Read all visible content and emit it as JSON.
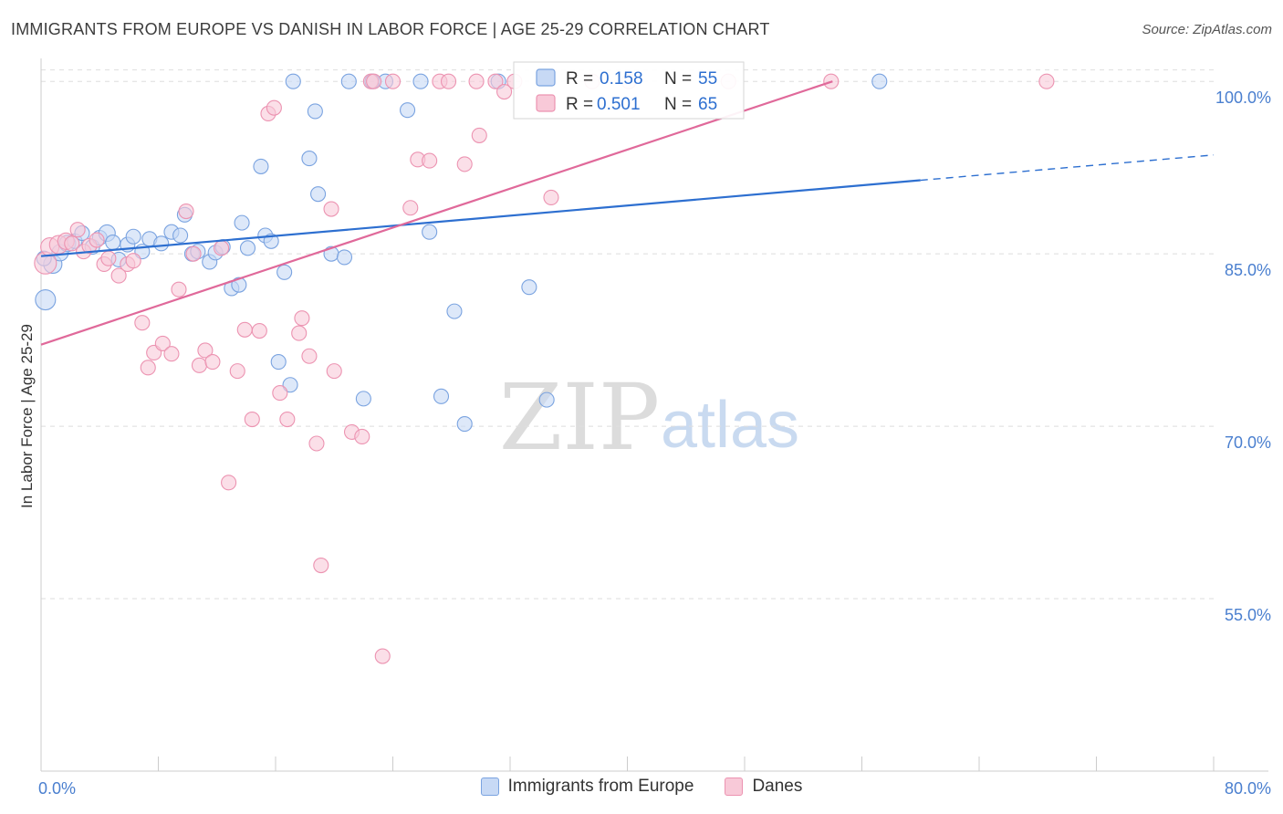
{
  "title": "IMMIGRANTS FROM EUROPE VS DANISH IN LABOR FORCE | AGE 25-29 CORRELATION CHART",
  "source": "Source: ZipAtlas.com",
  "watermark": {
    "zip": "ZIP",
    "atlas": "atlas"
  },
  "colors": {
    "blue_fill": "#c7d9f5",
    "blue_stroke": "#7aa3e0",
    "blue_line": "#2d6fd0",
    "pink_fill": "#f8c9d8",
    "pink_stroke": "#ec93b1",
    "pink_line": "#e0699a",
    "grid": "#dedede",
    "tick_label": "#4a7fcf",
    "axis": "#cccccc"
  },
  "chart_data": {
    "type": "scatter",
    "title": "IMMIGRANTS FROM EUROPE VS DANISH IN LABOR FORCE | AGE 25-29 CORRELATION CHART",
    "xlabel": "",
    "ylabel": "In Labor Force | Age 25-29",
    "xlim": [
      0,
      80
    ],
    "ylim": [
      40,
      102
    ],
    "x_tick_labels": [
      "0.0%",
      "80.0%"
    ],
    "y_ticks": [
      55,
      70,
      85,
      100
    ],
    "y_tick_labels": [
      "55.0%",
      "70.0%",
      "85.0%",
      "100.0%"
    ],
    "legend": [
      {
        "series": "Immigrants from Europe",
        "r_label": "R =",
        "r_value": "0.158",
        "n_label": "N =",
        "n_value": "55"
      },
      {
        "series": "Danes",
        "r_label": "R =",
        "r_value": "0.501",
        "n_label": "N =",
        "n_value": "65"
      }
    ],
    "series": [
      {
        "name": "Immigrants from Europe",
        "color_key": "blue",
        "trend": {
          "x0": 0,
          "y0": 84.8,
          "x1": 60,
          "y1": 91.4,
          "dash_to_x": 80,
          "dash_to_y": 93.6
        },
        "points": [
          [
            0.3,
            81.0,
            11
          ],
          [
            0.8,
            84.1,
            10
          ],
          [
            1.3,
            85.1,
            9
          ],
          [
            1.8,
            85.9,
            9
          ],
          [
            2.3,
            86.1,
            8
          ],
          [
            2.8,
            86.8,
            8
          ],
          [
            3.5,
            85.6,
            8
          ],
          [
            4.0,
            86.4,
            8
          ],
          [
            4.5,
            86.8,
            9
          ],
          [
            4.9,
            86.0,
            8
          ],
          [
            5.3,
            84.5,
            8
          ],
          [
            5.9,
            85.8,
            8
          ],
          [
            6.3,
            86.5,
            8
          ],
          [
            6.9,
            85.2,
            8
          ],
          [
            7.4,
            86.3,
            8
          ],
          [
            8.2,
            85.9,
            8
          ],
          [
            8.9,
            86.9,
            8
          ],
          [
            9.5,
            86.6,
            8
          ],
          [
            9.8,
            88.4,
            8
          ],
          [
            10.3,
            85.0,
            8
          ],
          [
            10.7,
            85.2,
            8
          ],
          [
            11.5,
            84.3,
            8
          ],
          [
            11.9,
            85.1,
            8
          ],
          [
            12.4,
            85.6,
            8
          ],
          [
            13.0,
            82.0,
            8
          ],
          [
            13.5,
            82.3,
            8
          ],
          [
            13.7,
            87.7,
            8
          ],
          [
            14.1,
            85.5,
            8
          ],
          [
            15.3,
            86.6,
            8
          ],
          [
            15.7,
            86.1,
            8
          ],
          [
            15.0,
            92.6,
            8
          ],
          [
            16.6,
            83.4,
            8
          ],
          [
            17.0,
            73.6,
            8
          ],
          [
            16.2,
            75.6,
            8
          ],
          [
            17.2,
            100.0,
            8
          ],
          [
            18.7,
            97.4,
            8
          ],
          [
            18.3,
            93.3,
            8
          ],
          [
            18.9,
            90.2,
            8
          ],
          [
            19.8,
            85.0,
            8
          ],
          [
            20.7,
            84.7,
            8
          ],
          [
            21.0,
            100.0,
            8
          ],
          [
            22.0,
            72.4,
            8
          ],
          [
            22.6,
            100.0,
            8
          ],
          [
            23.5,
            100.0,
            8
          ],
          [
            25.0,
            97.5,
            8
          ],
          [
            25.9,
            100.0,
            8
          ],
          [
            26.5,
            86.9,
            8
          ],
          [
            27.3,
            72.6,
            8
          ],
          [
            28.2,
            80.0,
            8
          ],
          [
            28.9,
            70.2,
            8
          ],
          [
            31.2,
            100.0,
            8
          ],
          [
            33.3,
            82.1,
            8
          ],
          [
            34.5,
            72.3,
            8
          ],
          [
            57.2,
            100.0,
            8
          ],
          [
            0.2,
            84.6,
            8
          ]
        ]
      },
      {
        "name": "Danes",
        "color_key": "pink",
        "trend": {
          "x0": 0,
          "y0": 77.1,
          "x1": 54,
          "y1": 100.0
        },
        "points": [
          [
            0.3,
            84.2,
            12
          ],
          [
            0.6,
            85.6,
            10
          ],
          [
            1.2,
            85.8,
            10
          ],
          [
            1.7,
            86.1,
            9
          ],
          [
            2.1,
            85.9,
            8
          ],
          [
            2.5,
            87.1,
            8
          ],
          [
            2.9,
            85.2,
            8
          ],
          [
            3.3,
            85.7,
            8
          ],
          [
            3.8,
            86.2,
            8
          ],
          [
            4.3,
            84.1,
            8
          ],
          [
            4.6,
            84.6,
            8
          ],
          [
            5.3,
            83.1,
            8
          ],
          [
            5.9,
            84.1,
            8
          ],
          [
            6.3,
            84.4,
            8
          ],
          [
            6.9,
            79.0,
            8
          ],
          [
            7.3,
            75.1,
            8
          ],
          [
            7.7,
            76.4,
            8
          ],
          [
            8.3,
            77.2,
            8
          ],
          [
            8.9,
            76.3,
            8
          ],
          [
            9.4,
            81.9,
            8
          ],
          [
            9.9,
            88.7,
            8
          ],
          [
            10.4,
            85.0,
            8
          ],
          [
            10.8,
            75.3,
            8
          ],
          [
            11.2,
            76.6,
            8
          ],
          [
            11.7,
            75.6,
            8
          ],
          [
            12.3,
            85.5,
            8
          ],
          [
            12.8,
            65.1,
            8
          ],
          [
            13.4,
            74.8,
            8
          ],
          [
            13.9,
            78.4,
            8
          ],
          [
            14.4,
            70.6,
            8
          ],
          [
            14.9,
            78.3,
            8
          ],
          [
            15.5,
            97.2,
            8
          ],
          [
            15.9,
            97.7,
            8
          ],
          [
            16.3,
            72.9,
            8
          ],
          [
            16.8,
            70.6,
            8
          ],
          [
            17.6,
            78.1,
            8
          ],
          [
            17.8,
            79.4,
            8
          ],
          [
            18.3,
            76.1,
            8
          ],
          [
            18.8,
            68.5,
            8
          ],
          [
            19.1,
            57.9,
            8
          ],
          [
            19.8,
            88.9,
            8
          ],
          [
            20.0,
            74.8,
            8
          ],
          [
            21.2,
            69.5,
            8
          ],
          [
            21.9,
            69.1,
            8
          ],
          [
            22.5,
            100.0,
            8
          ],
          [
            23.3,
            50.0,
            8
          ],
          [
            24.0,
            100.0,
            8
          ],
          [
            25.2,
            89.0,
            8
          ],
          [
            25.7,
            93.2,
            8
          ],
          [
            26.5,
            93.1,
            8
          ],
          [
            27.2,
            100.0,
            8
          ],
          [
            27.8,
            100.0,
            8
          ],
          [
            28.9,
            92.8,
            8
          ],
          [
            29.7,
            100.0,
            8
          ],
          [
            29.9,
            95.3,
            8
          ],
          [
            31.0,
            100.0,
            8
          ],
          [
            31.6,
            99.1,
            8
          ],
          [
            32.3,
            100.0,
            8
          ],
          [
            34.8,
            89.9,
            8
          ],
          [
            37.6,
            100.0,
            8
          ],
          [
            40.1,
            100.0,
            8
          ],
          [
            46.9,
            100.0,
            8
          ],
          [
            53.9,
            100.0,
            8
          ],
          [
            68.6,
            100.0,
            8
          ],
          [
            22.7,
            100.0,
            8
          ]
        ]
      }
    ]
  }
}
